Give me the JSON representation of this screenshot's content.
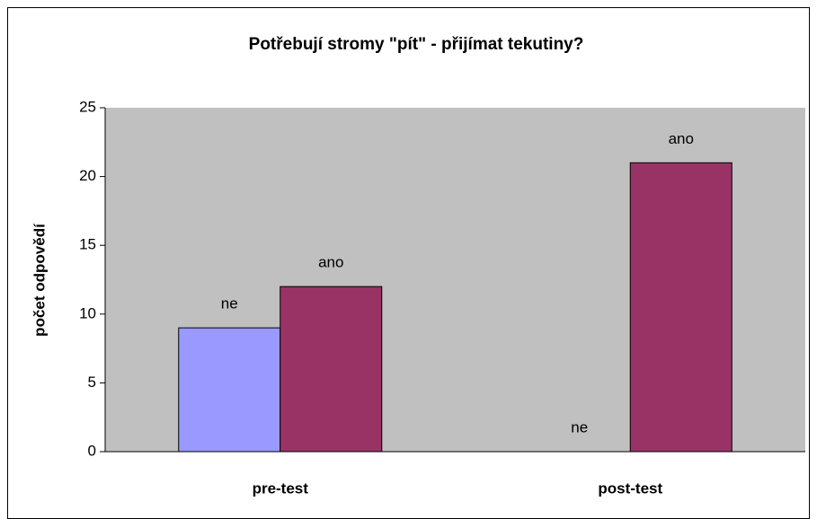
{
  "chart_data": {
    "type": "bar",
    "title": "Potřebují stromy \"pít\" - přijímat tekutiny?",
    "y_label": "počet odpovědí",
    "categories": [
      "pre-test",
      "post-test"
    ],
    "series": [
      {
        "name": "ne",
        "color": "#9999ff",
        "values": [
          9,
          0
        ]
      },
      {
        "name": "ano",
        "color": "#993366",
        "values": [
          12,
          21
        ]
      }
    ],
    "ylim": [
      0,
      25
    ],
    "yticks": [
      0,
      5,
      10,
      15,
      20,
      25
    ],
    "grid": false,
    "plot_background": "#c0c0c0"
  }
}
